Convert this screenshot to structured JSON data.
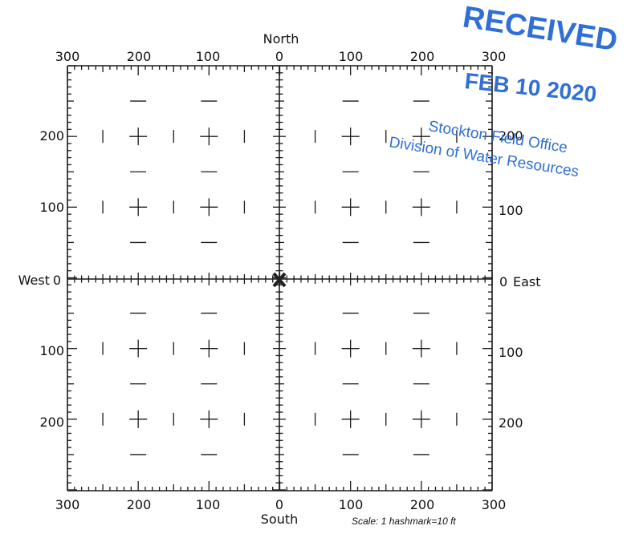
{
  "directions": {
    "north": "North",
    "south": "South",
    "west": "West",
    "east": "East"
  },
  "top_ticks": [
    "300",
    "200",
    "100",
    "0",
    "100",
    "200",
    "300"
  ],
  "bottom_ticks": [
    "300",
    "200",
    "100",
    "0",
    "100",
    "200",
    "300"
  ],
  "left_ticks": [
    "200",
    "100",
    "0",
    "100",
    "200"
  ],
  "right_ticks": [
    "200",
    "100",
    "0",
    "100",
    "200"
  ],
  "scale_note": "Scale:  1 hashmark=10 ft",
  "stamp": {
    "received": "RECEIVED",
    "date": "FEB 10 2020",
    "office": "Stockton Field Office",
    "division": "Division of Water Resources",
    "color": "#2f6fd6"
  },
  "center_marker": "X"
}
